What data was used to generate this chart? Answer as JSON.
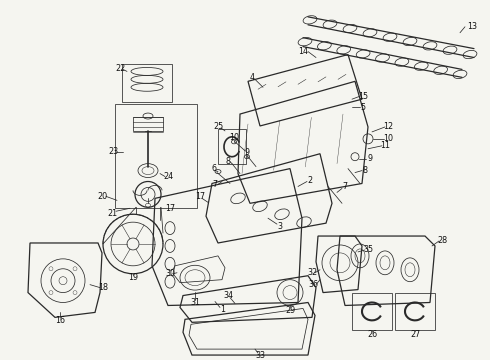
{
  "bg_color": "#f5f5f0",
  "fig_width": 4.9,
  "fig_height": 3.6,
  "dpi": 100,
  "lc": "#2a2a2a",
  "lw_main": 0.9,
  "lw_thin": 0.55,
  "label_fontsize": 5.8,
  "label_color": "#111111"
}
